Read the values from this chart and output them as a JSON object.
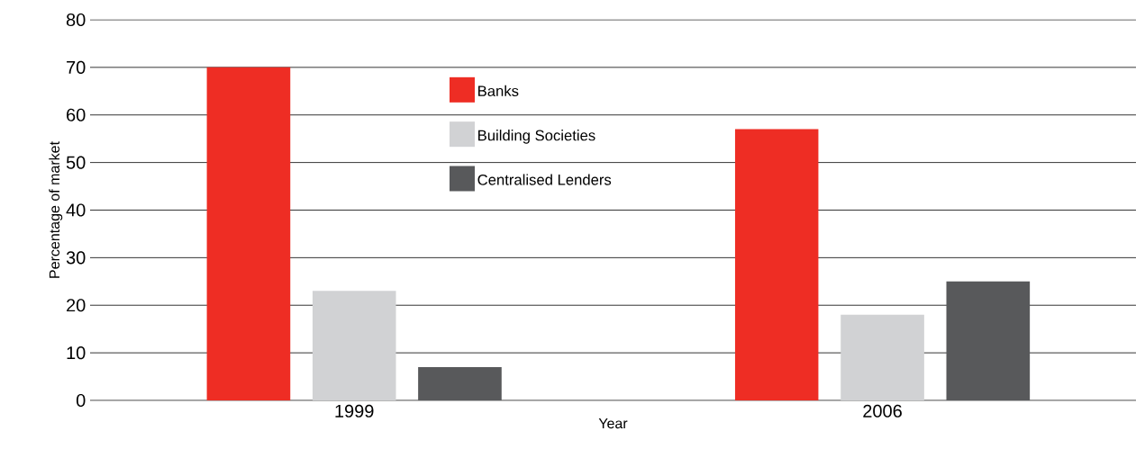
{
  "chart_data": {
    "type": "bar",
    "xlabel": "Year",
    "ylabel": "Percentage of market",
    "categories": [
      "1999",
      "2006"
    ],
    "series": [
      {
        "name": "Banks",
        "color": "#ee2d24",
        "values": [
          70,
          57
        ]
      },
      {
        "name": "Building Societies",
        "color": "#d1d2d4",
        "values": [
          23,
          18
        ]
      },
      {
        "name": "Centralised Lenders",
        "color": "#58595b",
        "values": [
          7,
          25
        ]
      }
    ],
    "ylim": [
      0,
      80
    ],
    "yticks": [
      0,
      10,
      20,
      30,
      40,
      50,
      60,
      70,
      80
    ],
    "grid": "y",
    "legend": "top"
  }
}
